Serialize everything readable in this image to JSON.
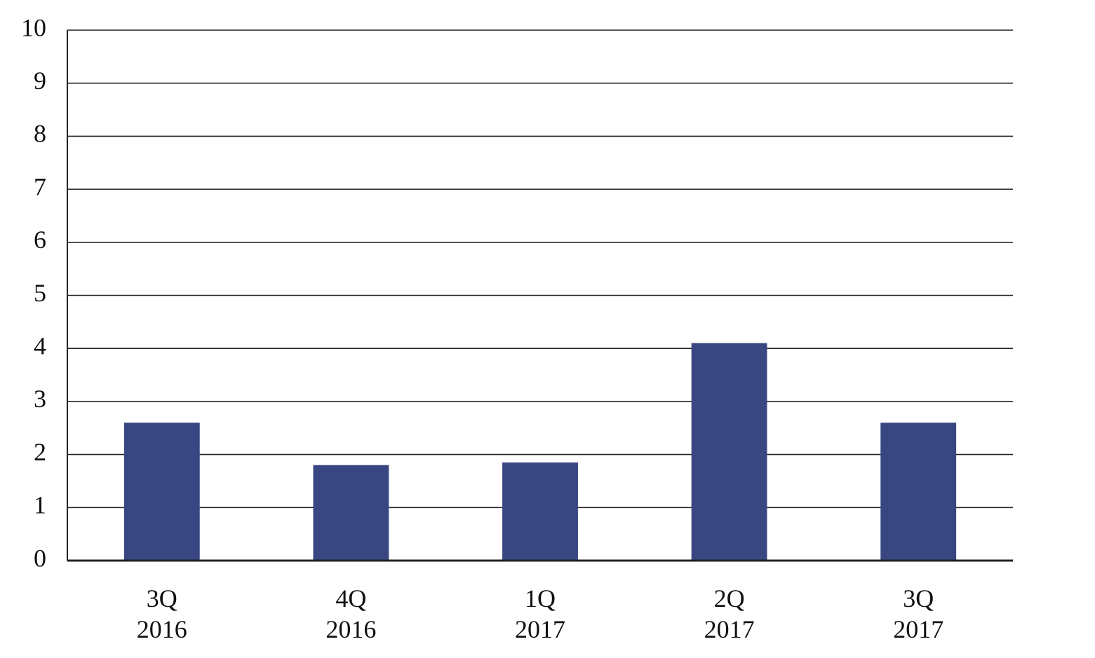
{
  "chart_data": {
    "type": "bar",
    "categories": [
      "3Q\n2016",
      "4Q\n2016",
      "1Q\n2017",
      "2Q\n2017",
      "3Q\n2017"
    ],
    "values": [
      2.6,
      1.8,
      1.85,
      4.1,
      2.6
    ],
    "color": "#384682",
    "ylim": [
      0,
      10
    ],
    "yticks": [
      0,
      1,
      2,
      3,
      4,
      5,
      6,
      7,
      8,
      9,
      10
    ],
    "grid": true
  }
}
